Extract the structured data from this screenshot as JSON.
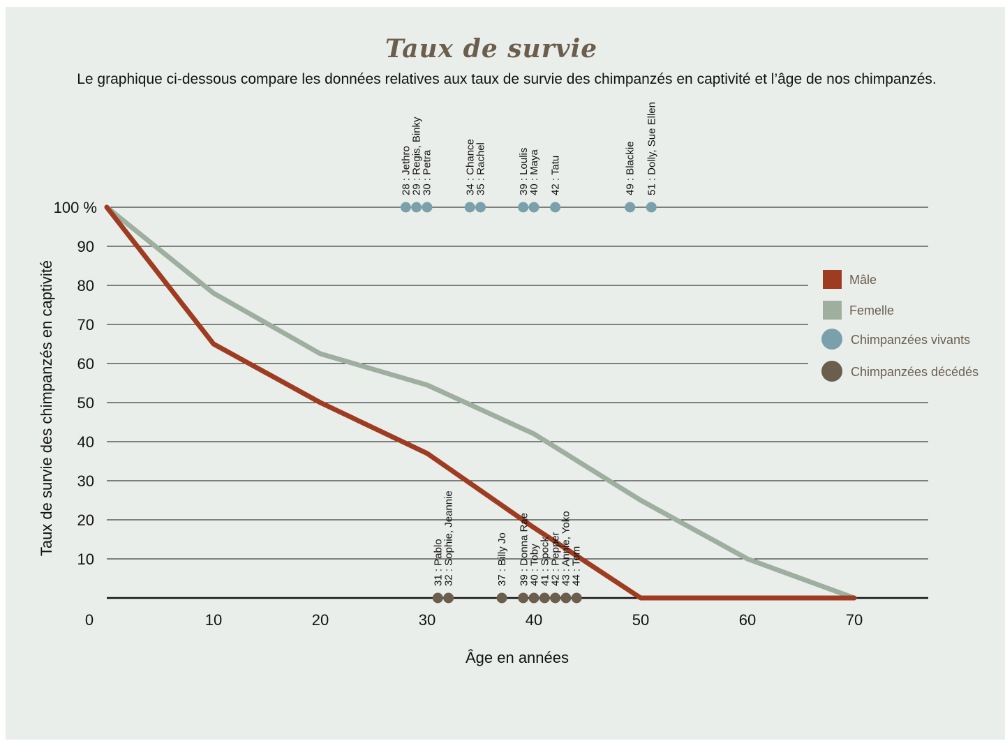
{
  "chart_data": {
    "type": "line",
    "title": "Taux de survie",
    "subtitle": "Le graphique ci-dessous compare les données relatives aux taux de survie des chimpanzés en captivité et l’âge de nos chimpanzés.",
    "xlabel": "Âge en années",
    "ylabel": "Taux de survie des chimpanzés en captivité",
    "xlim": [
      0,
      77
    ],
    "ylim": [
      0,
      100
    ],
    "x_ticks": [
      "0",
      "10",
      "20",
      "30",
      "40",
      "50",
      "60",
      "70"
    ],
    "x_tick_values": [
      0,
      10,
      20,
      30,
      40,
      50,
      60,
      70
    ],
    "y_ticks": [
      "10",
      "20",
      "30",
      "40",
      "50",
      "60",
      "70",
      "80",
      "90",
      "100 %"
    ],
    "y_tick_values": [
      10,
      20,
      30,
      40,
      50,
      60,
      70,
      80,
      90,
      100
    ],
    "grid": "horizontal",
    "legend_position": "right",
    "series": [
      {
        "name": "Mâle",
        "color": "#9e3c22",
        "x": [
          0,
          10,
          20,
          30,
          40,
          50,
          70
        ],
        "y": [
          100,
          65,
          50,
          37,
          18,
          0,
          0
        ]
      },
      {
        "name": "Femelle",
        "color": "#9eae9f",
        "x": [
          0,
          10,
          20,
          30,
          40,
          50,
          60,
          70
        ],
        "y": [
          100,
          78,
          62.5,
          54.5,
          42,
          25,
          10,
          0
        ]
      }
    ],
    "living": {
      "name": "Chimpanzées vivants",
      "color": "#7aa0ab",
      "points": [
        28,
        29,
        30,
        34,
        35,
        39,
        40,
        42,
        49,
        51
      ],
      "labels": [
        {
          "x": 29,
          "lines": [
            "28 : Jethro",
            "29 : Regis, Binky",
            "30 : Petra"
          ]
        },
        {
          "x": 34.5,
          "lines": [
            "34 : Chance",
            "35 : Rachel"
          ]
        },
        {
          "x": 39.5,
          "lines": [
            "39 : Loulis",
            "40 : Maya"
          ]
        },
        {
          "x": 42,
          "lines": [
            "42 : Tatu"
          ]
        },
        {
          "x": 49,
          "lines": [
            "49 : Blackie"
          ]
        },
        {
          "x": 51,
          "lines": [
            "51 : Dolly, Sue Ellen"
          ]
        }
      ]
    },
    "deceased": {
      "name": "Chimpanzées décédés",
      "color": "#6b5e4c",
      "points": [
        31,
        32,
        37,
        39,
        40,
        41,
        42,
        43,
        44
      ],
      "labels": [
        {
          "x": 31.5,
          "lines": [
            "31 : Pablo",
            "32 : Sophie, Jeannie"
          ]
        },
        {
          "x": 37,
          "lines": [
            "37 : Billy Jo"
          ]
        },
        {
          "x": 41.5,
          "lines": [
            "39 : Donna Rae",
            "40 : Toby",
            "41 : Spock",
            "42 : Pepper",
            "43 : Annie, Yoko",
            "44 : Tom"
          ]
        }
      ]
    },
    "legend": [
      {
        "label": "Mâle",
        "shape": "square",
        "color": "#9e3c22",
        "text_color": "#6b5e4c"
      },
      {
        "label": "Femelle",
        "shape": "square",
        "color": "#9eae9f",
        "text_color": "#6b5e4c"
      },
      {
        "label": "Chimpanzées vivants",
        "shape": "circle",
        "color": "#7aa0ab",
        "text_color": "#6b5e4c"
      },
      {
        "label": "Chimpanzées décédés",
        "shape": "circle",
        "color": "#6b5e4c",
        "text_color": "#6b5e4c"
      }
    ]
  }
}
